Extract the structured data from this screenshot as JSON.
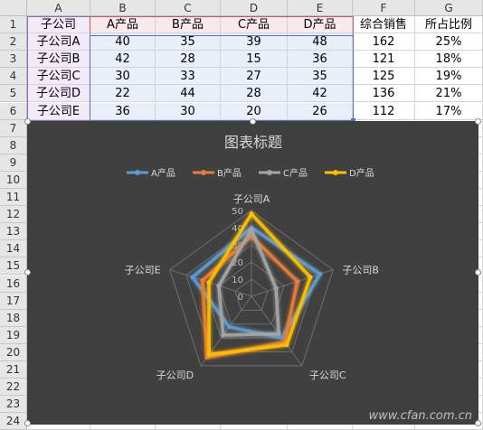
{
  "columns": [
    "A",
    "B",
    "C",
    "D",
    "E",
    "F",
    "G"
  ],
  "rows": [
    "1",
    "2",
    "3",
    "4",
    "5",
    "6",
    "7",
    "8",
    "9",
    "10",
    "11",
    "12",
    "13",
    "14",
    "15",
    "16",
    "17",
    "18",
    "19",
    "20",
    "21",
    "22",
    "23",
    "24"
  ],
  "table": {
    "headers": [
      "子公司",
      "A产品",
      "B产品",
      "C产品",
      "D产品",
      "综合销售",
      "所占比例"
    ],
    "data": [
      [
        "子公司A",
        "40",
        "35",
        "39",
        "48",
        "162",
        "25%"
      ],
      [
        "子公司B",
        "42",
        "28",
        "15",
        "36",
        "121",
        "18%"
      ],
      [
        "子公司C",
        "30",
        "33",
        "27",
        "35",
        "125",
        "19%"
      ],
      [
        "子公司D",
        "22",
        "44",
        "28",
        "42",
        "136",
        "21%"
      ],
      [
        "子公司E",
        "36",
        "30",
        "20",
        "26",
        "112",
        "17%"
      ]
    ]
  },
  "chart": {
    "background": "#404040",
    "watermark": "www.cfan.com.cn"
  },
  "chart_data": {
    "type": "radar",
    "title": "图表标题",
    "categories": [
      "子公司A",
      "子公司B",
      "子公司C",
      "子公司D",
      "子公司E"
    ],
    "series": [
      {
        "name": "A产品",
        "color": "#5b9bd5",
        "values": [
          40,
          42,
          30,
          22,
          36
        ]
      },
      {
        "name": "B产品",
        "color": "#ed7d31",
        "values": [
          35,
          28,
          33,
          44,
          30
        ]
      },
      {
        "name": "C产品",
        "color": "#a5a5a5",
        "values": [
          39,
          15,
          27,
          28,
          20
        ]
      },
      {
        "name": "D产品",
        "color": "#ffc000",
        "values": [
          48,
          36,
          35,
          42,
          26
        ]
      }
    ],
    "rlim": [
      0,
      50
    ],
    "ticks": [
      "0",
      "10",
      "20",
      "30",
      "40",
      "50"
    ],
    "legend": "top"
  }
}
